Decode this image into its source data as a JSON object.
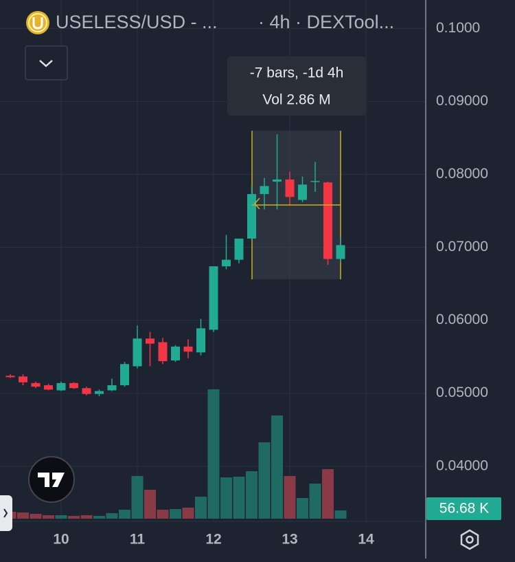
{
  "chart_data": {
    "type": "candlestick",
    "title": "USELESS/USD - ...",
    "subtitle": "· 4h · DEXTool...",
    "categories": [
      null,
      null,
      null,
      null,
      "10",
      null,
      null,
      null,
      null,
      null,
      "11",
      null,
      null,
      null,
      null,
      null,
      "12",
      null,
      null,
      null,
      null,
      null,
      "13",
      null,
      null,
      null,
      null,
      null,
      "14"
    ],
    "open": [
      0.0524,
      0.0523,
      0.0514,
      0.0511,
      0.0504,
      0.0514,
      0.0507,
      0.0499,
      0.0504,
      0.0511,
      0.0537,
      0.0575,
      0.057,
      0.0545,
      0.0564,
      0.0556,
      0.0587,
      0.0674,
      0.0683,
      0.0712,
      0.0773,
      0.079,
      0.0793,
      0.0765,
      0.079,
      0.0789,
      0.0684,
      null,
      null
    ],
    "high": [
      0.0526,
      0.0526,
      0.0516,
      0.0513,
      0.0516,
      0.0515,
      0.0509,
      0.0505,
      0.052,
      0.0543,
      0.0593,
      0.0584,
      0.0576,
      0.0566,
      0.0574,
      0.0602,
      0.0674,
      0.0717,
      0.0711,
      0.0785,
      0.0795,
      0.0855,
      0.0804,
      0.0797,
      0.0817,
      0.079,
      0.0713,
      null,
      null
    ],
    "low": [
      0.0521,
      0.0511,
      0.0507,
      0.0504,
      0.0503,
      0.0506,
      0.0497,
      0.0496,
      0.0503,
      0.0509,
      0.0534,
      0.0537,
      0.054,
      0.0543,
      0.0548,
      0.0552,
      0.0584,
      0.067,
      0.0678,
      0.071,
      0.0752,
      0.0752,
      0.0757,
      0.0762,
      0.0776,
      0.0676,
      0.068,
      null,
      null
    ],
    "close": [
      0.0522,
      0.0515,
      0.0509,
      0.0505,
      0.0514,
      0.0507,
      0.0499,
      0.0503,
      0.0511,
      0.054,
      0.0575,
      0.0568,
      0.0544,
      0.0564,
      0.0557,
      0.0589,
      0.0674,
      0.0683,
      0.0712,
      0.0773,
      0.0784,
      0.0793,
      0.0769,
      0.0786,
      0.0791,
      0.0684,
      0.0703,
      null,
      null
    ],
    "volumes": [
      47000,
      42500,
      33000,
      23600,
      23600,
      18900,
      23600,
      18900,
      37800,
      61400,
      292800,
      198400,
      61400,
      66100,
      75600,
      151100,
      888000,
      283400,
      288100,
      325900,
      524300,
      708500,
      292800,
      141700,
      240900,
      340100,
      56680,
      null,
      null
    ],
    "last_volume_label": "56.68 K",
    "up_color": "#22ab94",
    "down_color": "#f23645",
    "volume_up_color": "#1f6b63",
    "volume_down_color": "#8a3a47",
    "ylim": [
      0.033,
      0.1039
    ],
    "yticks": [
      {
        "value": 0.1,
        "label": "0.1000"
      },
      {
        "value": 0.09,
        "label": "0.09000"
      },
      {
        "value": 0.08,
        "label": "0.08000"
      },
      {
        "value": 0.07,
        "label": "0.07000"
      },
      {
        "value": 0.06,
        "label": "0.06000"
      },
      {
        "value": 0.05,
        "label": "0.05000"
      },
      {
        "value": 0.04,
        "label": "0.04000"
      }
    ],
    "grid": true,
    "tooltip": [
      "-7 bars, -1d 4h",
      "Vol 2.86 M"
    ]
  }
}
